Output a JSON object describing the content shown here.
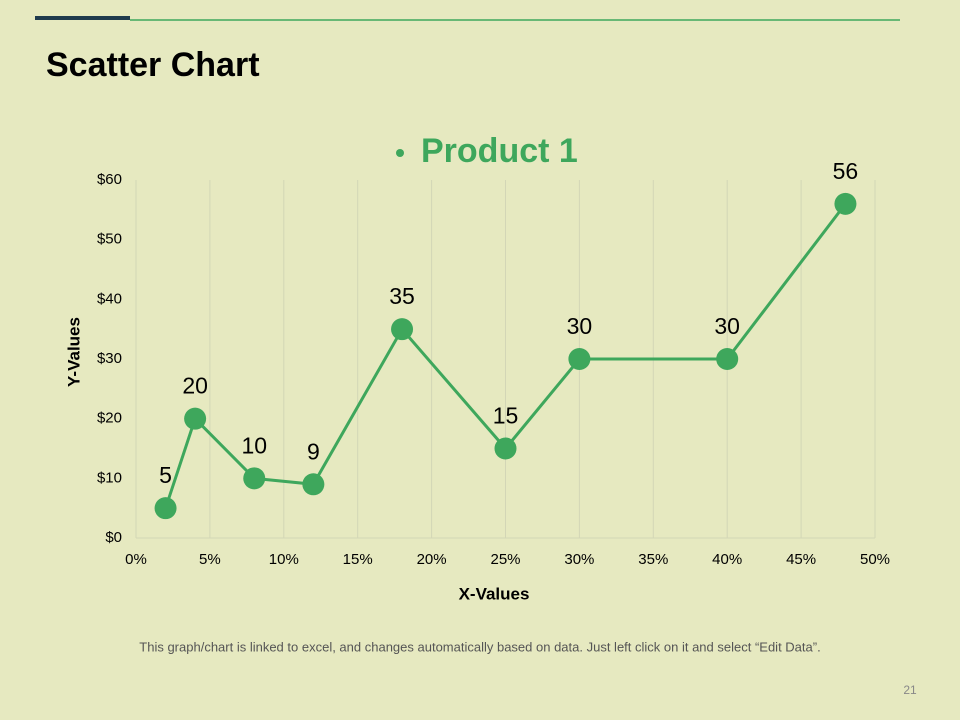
{
  "title": "Scatter Chart",
  "chart_data": {
    "type": "scatter",
    "lines": true,
    "x": [
      2,
      4,
      8,
      12,
      18,
      25,
      30,
      40,
      48
    ],
    "series": [
      {
        "name": "Product 1",
        "color": "#3ea75c",
        "values": [
          5,
          20,
          10,
          9,
          35,
          15,
          30,
          30,
          56
        ]
      }
    ],
    "x_label": "X-Values",
    "y_label": "Y-Values",
    "xlim": [
      0,
      50
    ],
    "xticks": [
      {
        "value": 0,
        "label": "0%"
      },
      {
        "value": 5,
        "label": "5%"
      },
      {
        "value": 10,
        "label": "10%"
      },
      {
        "value": 15,
        "label": "15%"
      },
      {
        "value": 20,
        "label": "20%"
      },
      {
        "value": 25,
        "label": "25%"
      },
      {
        "value": 30,
        "label": "30%"
      },
      {
        "value": 35,
        "label": "35%"
      },
      {
        "value": 40,
        "label": "40%"
      },
      {
        "value": 45,
        "label": "45%"
      },
      {
        "value": 50,
        "label": "50%"
      }
    ],
    "ylim": [
      0,
      60
    ],
    "yticks": [
      {
        "value": 0,
        "label": "$0"
      },
      {
        "value": 10,
        "label": "$10"
      },
      {
        "value": 20,
        "label": "$20"
      },
      {
        "value": 30,
        "label": "$30"
      },
      {
        "value": 40,
        "label": "$40"
      },
      {
        "value": 50,
        "label": "$50"
      },
      {
        "value": 60,
        "label": "$60"
      }
    ],
    "grid": "x",
    "legend": "top"
  },
  "footer": "This graph/chart is linked to excel, and changes automatically  based on data. Just left click on it and select “Edit Data”.",
  "page_number": "21"
}
